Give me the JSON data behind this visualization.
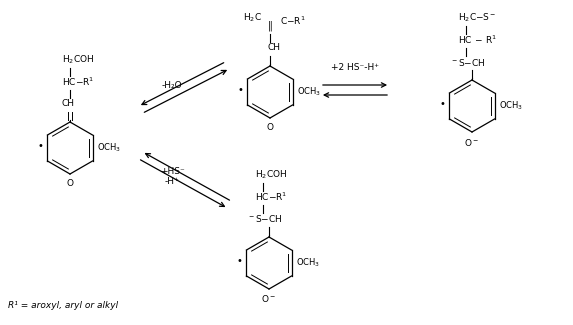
{
  "fig_width": 5.73,
  "fig_height": 3.25,
  "dpi": 100,
  "footnote": "R¹ = aroxyl, aryl or alkyl",
  "arrow_label_minus_h2o": "-H₂O",
  "arrow_label_hs_top": "+HS⁻",
  "arrow_label_h_plus": "-H⁺",
  "arrow_label_2hs": "+2 HS⁻-H⁺"
}
